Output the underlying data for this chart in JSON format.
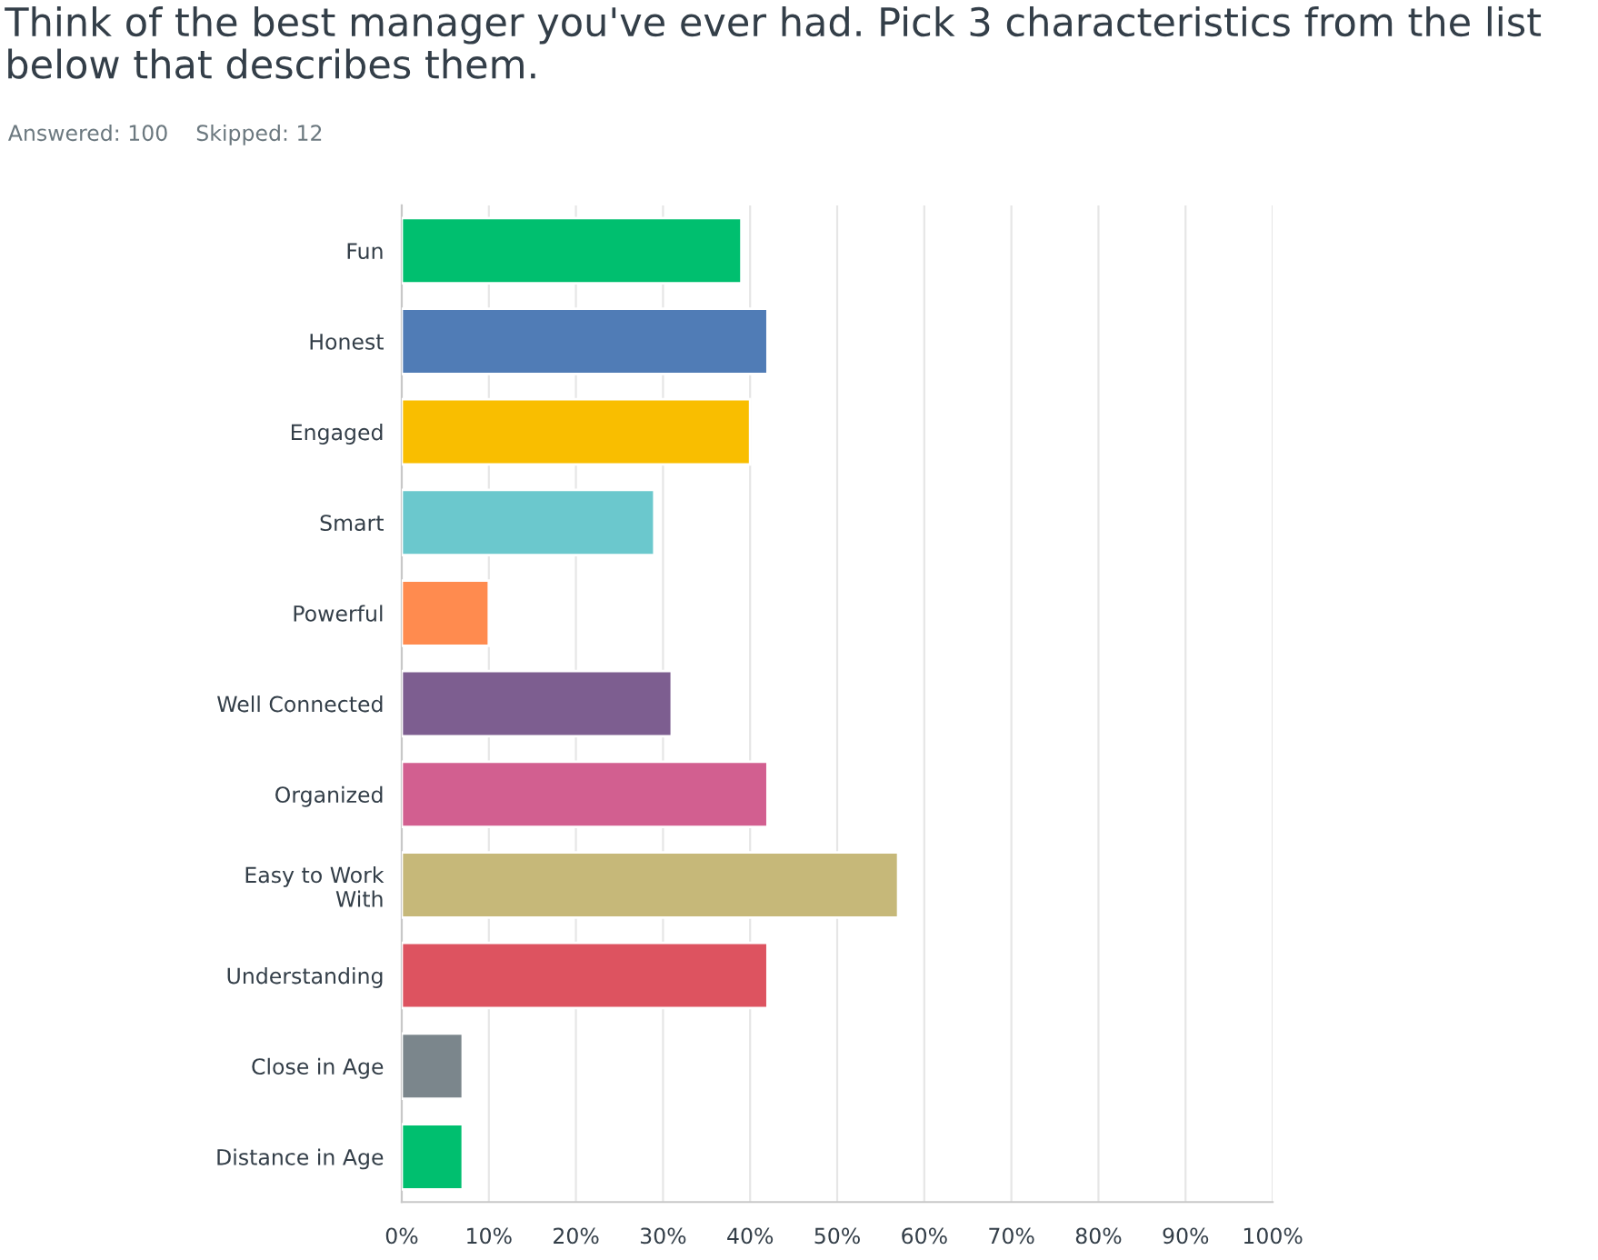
{
  "chart_data": {
    "type": "bar",
    "orientation": "horizontal",
    "title": "Think of the best manager you've ever had. Pick 3 characteristics from the list below that describes them.",
    "annotations": [
      "Answered: 100    Skipped: 12"
    ],
    "categories": [
      "Fun",
      "Honest",
      "Engaged",
      "Smart",
      "Powerful",
      "Well Connected",
      "Organized",
      "Easy to Work\nWith",
      "Understanding",
      "Close in Age",
      "Distance in Age"
    ],
    "values": [
      39,
      42,
      40,
      29,
      10,
      31,
      42,
      57,
      42,
      7,
      7
    ],
    "colors": [
      "#00bf6f",
      "#507cb6",
      "#f9be00",
      "#6bc8cd",
      "#ff8b4f",
      "#7d5e90",
      "#d25f90",
      "#c6b879",
      "#dd5360",
      "#7b868c",
      "#00bf6f"
    ],
    "xlim": [
      0,
      100
    ],
    "xticks": [
      {
        "value": 0,
        "label": "0%"
      },
      {
        "value": 10,
        "label": "10%"
      },
      {
        "value": 20,
        "label": "20%"
      },
      {
        "value": 30,
        "label": "30%"
      },
      {
        "value": 40,
        "label": "40%"
      },
      {
        "value": 50,
        "label": "50%"
      },
      {
        "value": 60,
        "label": "60%"
      },
      {
        "value": 70,
        "label": "70%"
      },
      {
        "value": 80,
        "label": "80%"
      },
      {
        "value": 90,
        "label": "90%"
      },
      {
        "value": 100,
        "label": "100%"
      }
    ],
    "grid": "x",
    "legend": false
  }
}
